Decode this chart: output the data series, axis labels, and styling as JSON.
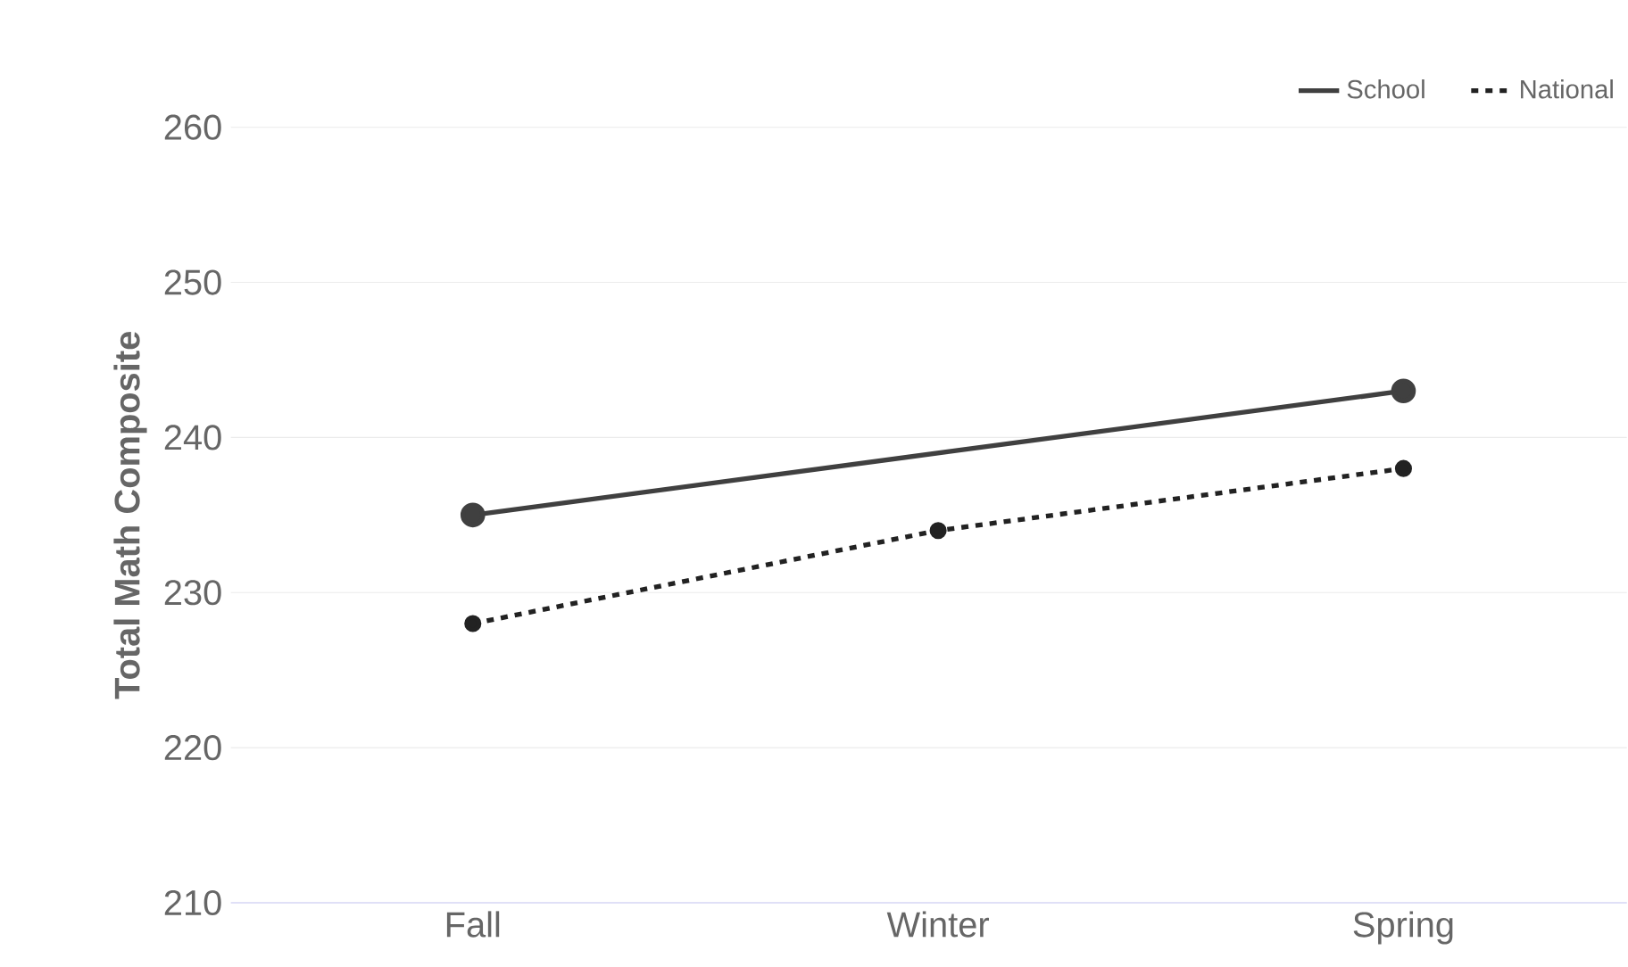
{
  "chart_data": {
    "type": "line",
    "ylabel": "Total Math Composite",
    "categories": [
      "Fall",
      "Winter",
      "Spring"
    ],
    "series": [
      {
        "name": "School",
        "color": "#404040",
        "values": [
          235,
          null,
          243
        ],
        "line_style": "solid"
      },
      {
        "name": "National",
        "color": "#222222",
        "values": [
          228,
          234,
          238
        ],
        "line_style": "dashed"
      }
    ],
    "ylim": [
      210,
      260
    ],
    "yticks": [
      210,
      220,
      230,
      240,
      250,
      260
    ],
    "grid": "y",
    "legend": "top right",
    "marker": "circle"
  }
}
